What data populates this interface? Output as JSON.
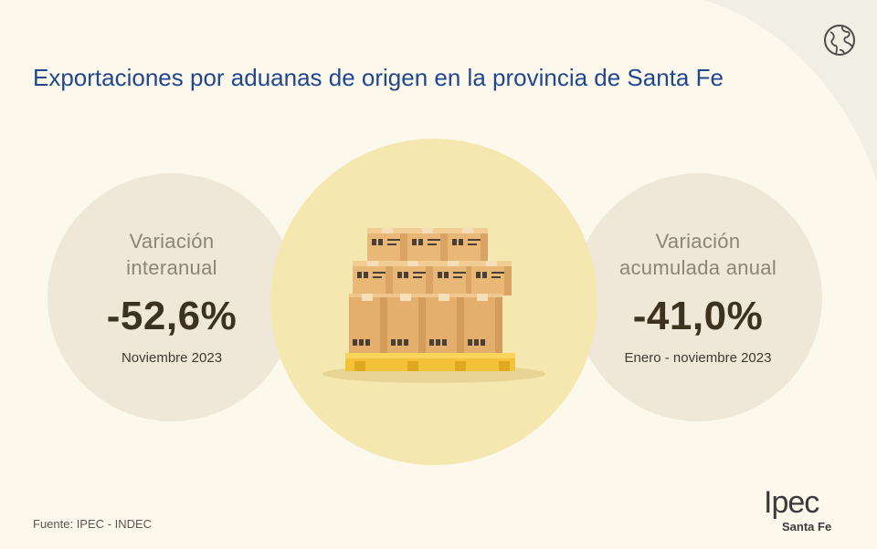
{
  "title": "Exportaciones por aduanas de origen en la provincia de Santa Fe",
  "stats": {
    "left": {
      "label_line1": "Variación",
      "label_line2": "interanual",
      "value": "-52,6%",
      "period": "Noviembre 2023"
    },
    "right": {
      "label_line1": "Variación",
      "label_line2": "acumulada anual",
      "value": "-41,0%",
      "period": "Enero - noviembre  2023"
    }
  },
  "source": "Fuente: IPEC - INDEC",
  "logo": {
    "main": "Ipec",
    "sub": "Santa Fe"
  },
  "icons": {
    "header": "globe-icon",
    "illustration": "boxes-on-pallet-illustration"
  },
  "colors": {
    "background": "#fcf8ec",
    "title": "#21488f",
    "stat_circle": "#efe8d8",
    "center_circle": "#f4e7b0",
    "value_text": "#3d3220",
    "box": "#e9b877",
    "pallet": "#f3c13a"
  }
}
